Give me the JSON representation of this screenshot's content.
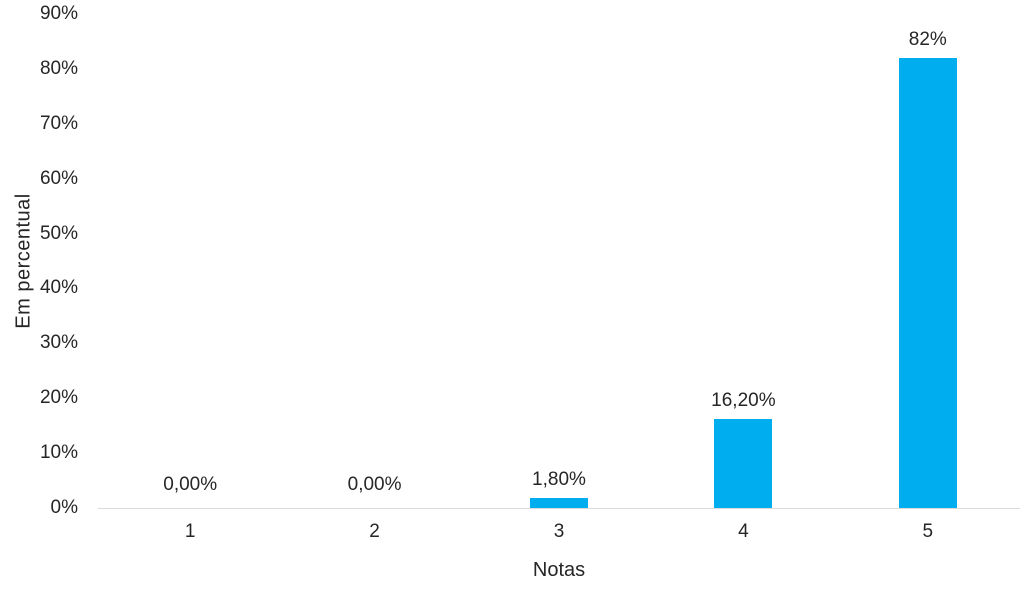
{
  "chart_data": {
    "type": "bar",
    "title": "",
    "categories": [
      "1",
      "2",
      "3",
      "4",
      "5"
    ],
    "values": [
      0,
      0,
      1.8,
      16.2,
      82
    ],
    "value_labels": [
      "0,00%",
      "0,00%",
      "1,80%",
      "16,20%",
      "82%"
    ],
    "xlabel": "Notas",
    "ylabel": "Em percentual",
    "ylim": [
      0,
      90
    ],
    "ytick_values": [
      0,
      10,
      20,
      30,
      40,
      50,
      60,
      70,
      80,
      90
    ],
    "ytick_labels": [
      "0%",
      "10%",
      "20%",
      "30%",
      "40%",
      "50%",
      "60%",
      "70%",
      "80%",
      "90%"
    ],
    "grid": false,
    "legend": false,
    "colors": {
      "bar_fill": "#00AEEF",
      "axis_line": "#D9D9D9",
      "text": "#262626",
      "background": "#FFFFFF"
    }
  }
}
